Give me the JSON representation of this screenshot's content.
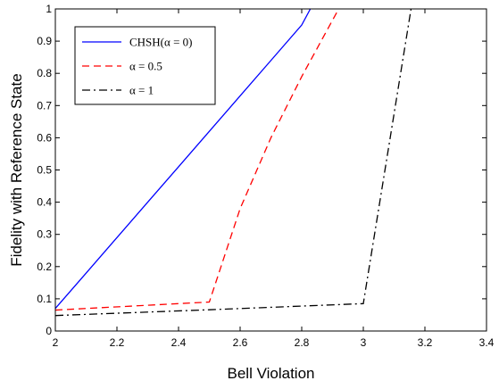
{
  "chart_data": {
    "type": "line",
    "title": "",
    "xlabel": "Bell Violation",
    "ylabel": "Fidelity with Reference State",
    "xlim": [
      2,
      3.4
    ],
    "ylim": [
      0,
      1
    ],
    "xticks": [
      "2",
      "2.2",
      "2.4",
      "2.6",
      "2.8",
      "3",
      "3.2",
      "3.4"
    ],
    "yticks": [
      "0",
      "0.1",
      "0.2",
      "0.3",
      "0.4",
      "0.5",
      "0.6",
      "0.7",
      "0.8",
      "0.9",
      "1"
    ],
    "grid": false,
    "legend_position": "top-left",
    "series": [
      {
        "name": "CHSH(α = 0)",
        "color": "#0000ff",
        "dash": "solid",
        "x": [
          2.0,
          2.1,
          2.2,
          2.3,
          2.4,
          2.5,
          2.6,
          2.7,
          2.8,
          2.828
        ],
        "y": [
          0.07,
          0.18,
          0.29,
          0.4,
          0.51,
          0.62,
          0.73,
          0.84,
          0.95,
          1.0
        ]
      },
      {
        "name": "α = 0.5",
        "color": "#ff0000",
        "dash": "dashed",
        "x": [
          2.0,
          2.5,
          2.6,
          2.7,
          2.8,
          2.92
        ],
        "y": [
          0.065,
          0.09,
          0.38,
          0.6,
          0.79,
          1.0
        ]
      },
      {
        "name": "α = 1",
        "color": "#000000",
        "dash": "dashdot",
        "x": [
          2.0,
          2.5,
          3.0,
          3.155
        ],
        "y": [
          0.048,
          0.066,
          0.085,
          1.0
        ]
      }
    ]
  }
}
